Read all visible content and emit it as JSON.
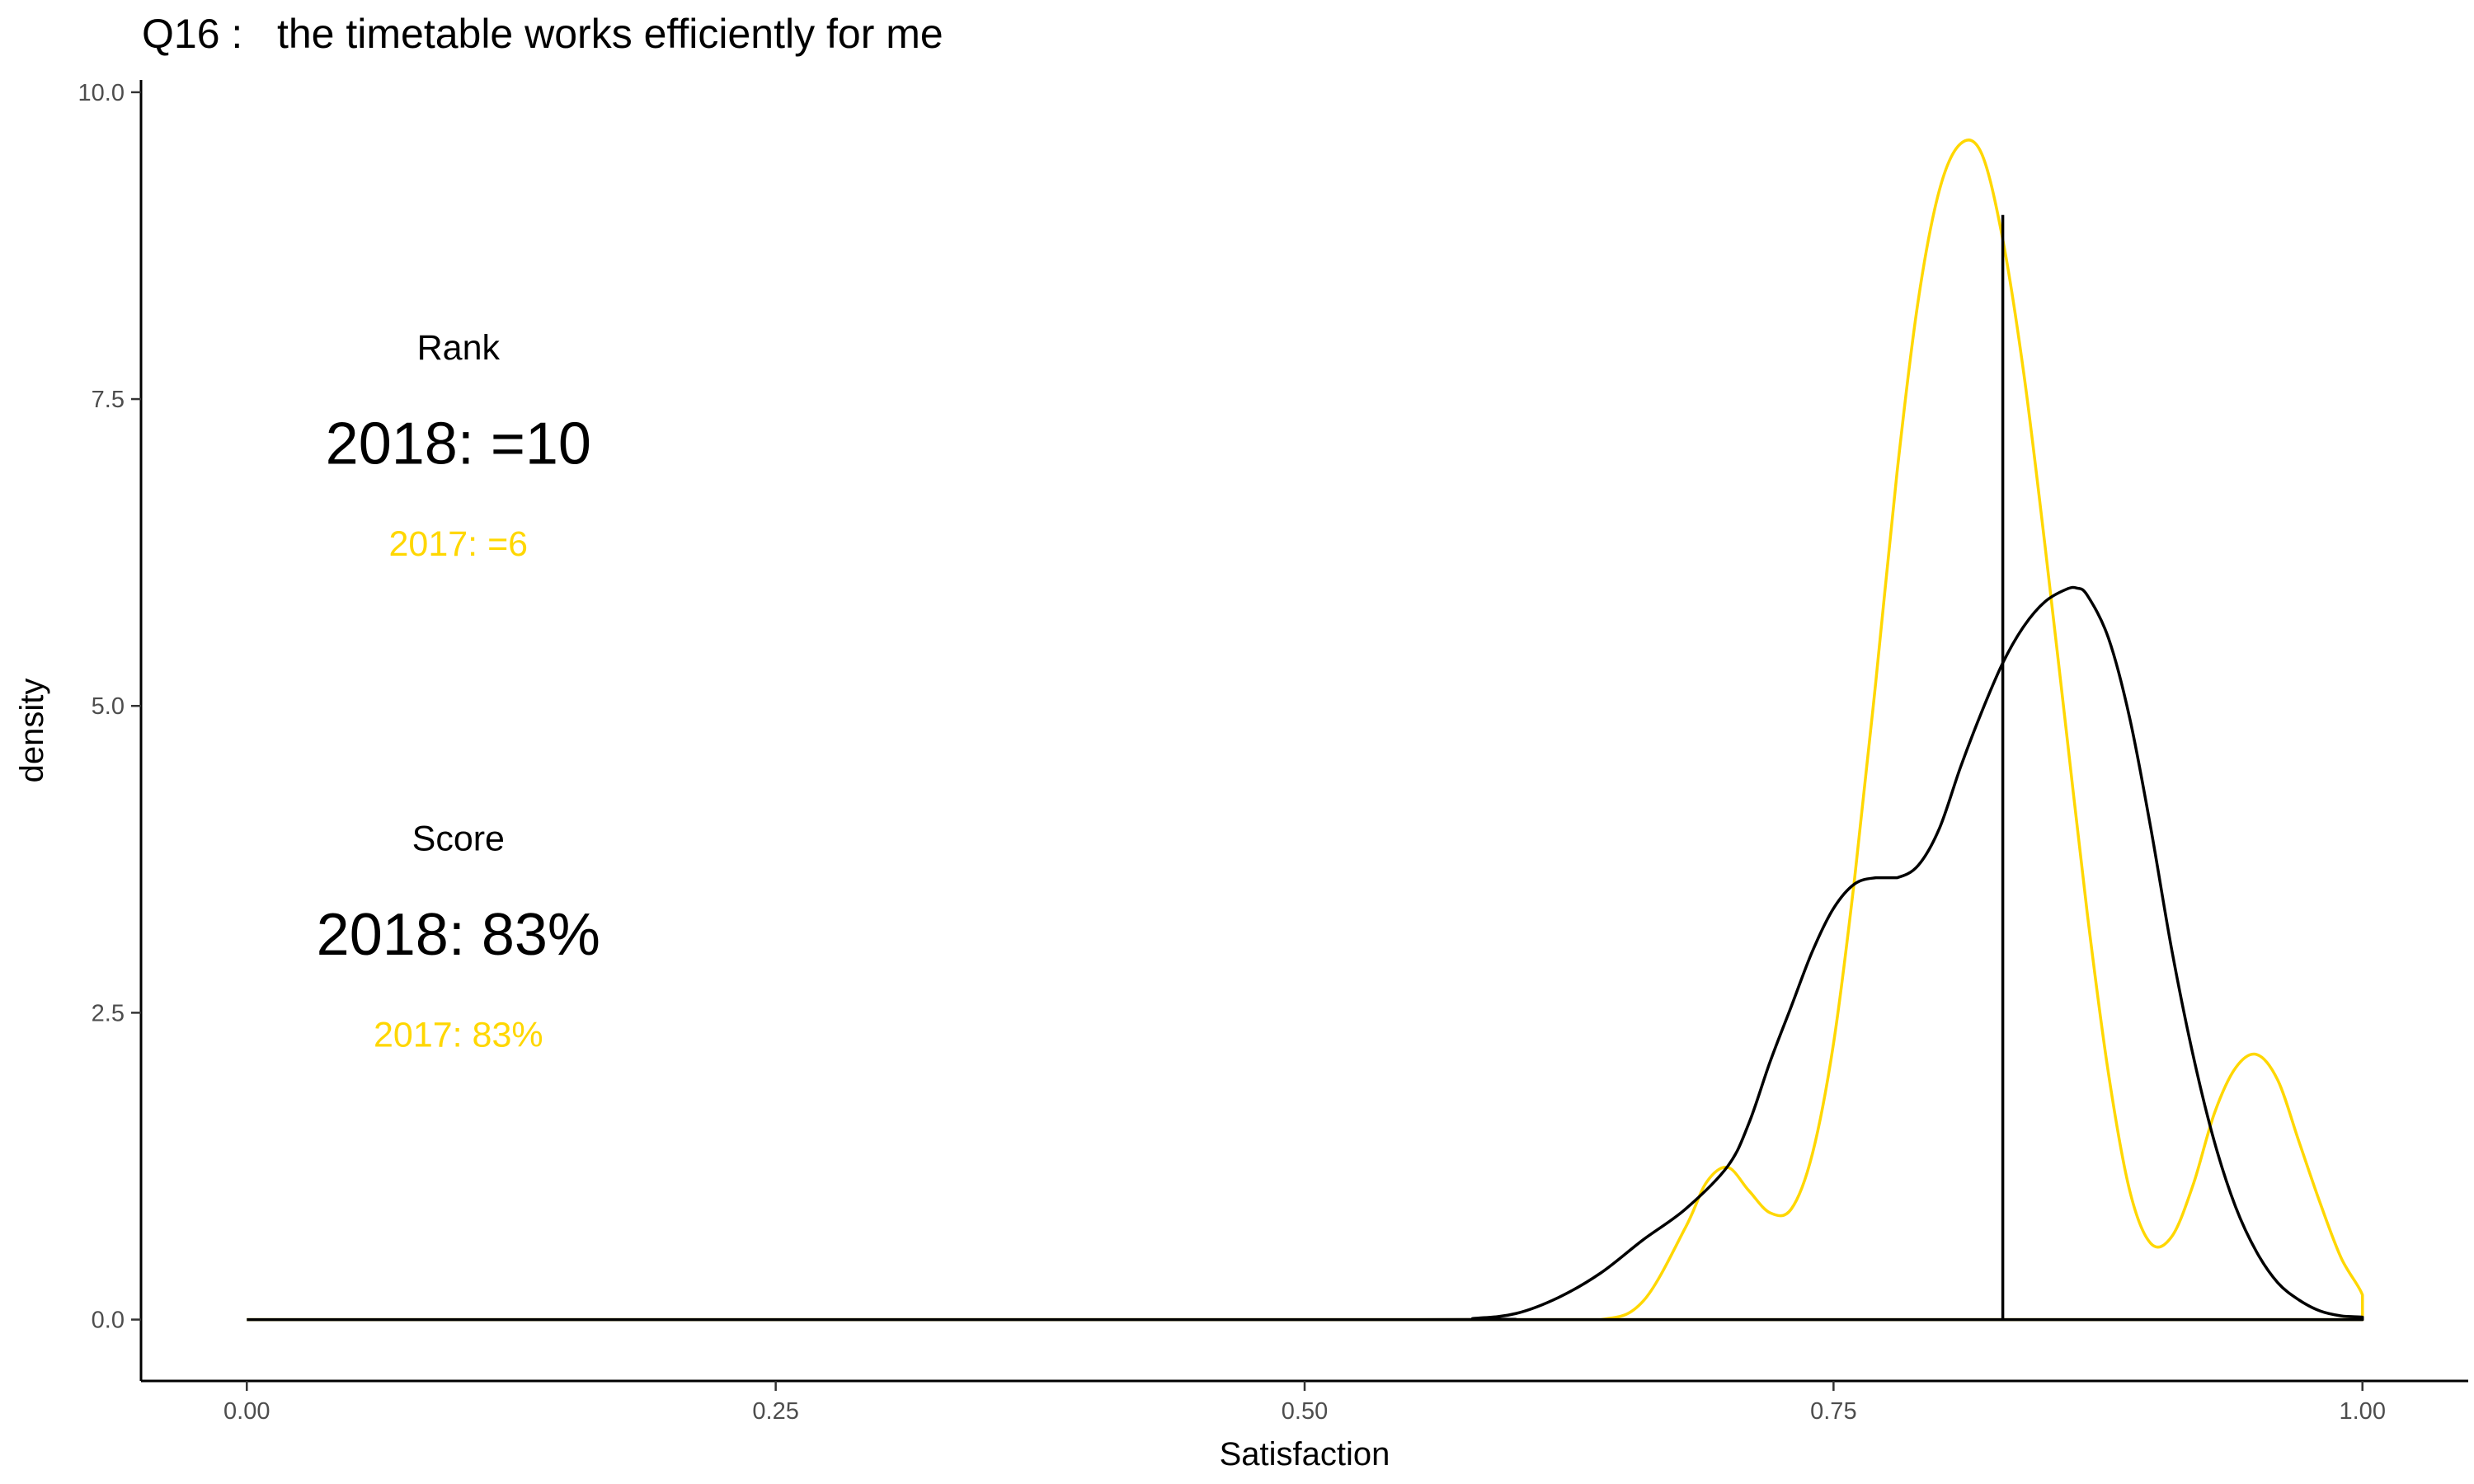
{
  "chart_data": {
    "type": "line",
    "title": "Q16 :   the timetable works efficiently for me",
    "xlabel": "Satisfaction",
    "ylabel": "density",
    "xlim": [
      -0.05,
      1.05
    ],
    "ylim": [
      -0.5,
      10.1
    ],
    "x_ticks": [
      0.0,
      0.25,
      0.5,
      0.75,
      1.0
    ],
    "x_tick_labels": [
      "0.00",
      "0.25",
      "0.50",
      "0.75",
      "1.00"
    ],
    "y_ticks": [
      0.0,
      2.5,
      5.0,
      7.5,
      10.0
    ],
    "y_tick_labels": [
      "0.0",
      "2.5",
      "5.0",
      "7.5",
      "10.0"
    ],
    "grid": false,
    "colors": {
      "2018": "#000000",
      "2017": "#FFD700"
    },
    "series": [
      {
        "color": "#FFD700",
        "x": [
          0.0,
          0.6,
          0.64,
          0.66,
          0.68,
          0.69,
          0.7,
          0.71,
          0.72,
          0.73,
          0.74,
          0.75,
          0.76,
          0.77,
          0.78,
          0.79,
          0.8,
          0.81,
          0.82,
          0.83,
          0.84,
          0.85,
          0.86,
          0.87,
          0.88,
          0.89,
          0.9,
          0.91,
          0.92,
          0.93,
          0.94,
          0.95,
          0.96,
          0.97,
          0.98,
          0.99,
          1.0,
          1.0,
          0.0
        ],
        "y": [
          0.0,
          0.0,
          0.0,
          0.15,
          0.75,
          1.12,
          1.24,
          1.05,
          0.87,
          0.9,
          1.35,
          2.25,
          3.6,
          5.2,
          6.9,
          8.3,
          9.2,
          9.58,
          9.5,
          8.8,
          7.7,
          6.3,
          4.8,
          3.3,
          2.0,
          1.05,
          0.62,
          0.68,
          1.1,
          1.68,
          2.05,
          2.16,
          1.95,
          1.45,
          0.95,
          0.5,
          0.2,
          0.0,
          0.0
        ]
      },
      {
        "color": "#000000",
        "x": [
          0.0,
          0.55,
          0.58,
          0.6,
          0.62,
          0.64,
          0.66,
          0.68,
          0.7,
          0.71,
          0.72,
          0.73,
          0.74,
          0.75,
          0.76,
          0.77,
          0.78,
          0.79,
          0.8,
          0.81,
          0.82,
          0.83,
          0.84,
          0.85,
          0.86,
          0.865,
          0.87,
          0.88,
          0.89,
          0.9,
          0.91,
          0.92,
          0.93,
          0.94,
          0.95,
          0.96,
          0.97,
          0.98,
          0.99,
          1.0,
          1.0,
          0.0
        ],
        "y": [
          0.0,
          0.0,
          0.01,
          0.05,
          0.18,
          0.38,
          0.65,
          0.9,
          1.25,
          1.6,
          2.1,
          2.55,
          3.0,
          3.35,
          3.55,
          3.6,
          3.6,
          3.7,
          4.0,
          4.5,
          4.95,
          5.35,
          5.65,
          5.85,
          5.95,
          5.96,
          5.9,
          5.55,
          4.9,
          4.0,
          3.0,
          2.15,
          1.45,
          0.92,
          0.55,
          0.3,
          0.16,
          0.07,
          0.03,
          0.02,
          0.0,
          0.0
        ]
      }
    ],
    "vline": {
      "x": 0.83,
      "y_top": 9.0,
      "color": "#000000"
    },
    "annotations": {
      "rank_label": "Rank",
      "rank_2018": "2018: =10",
      "rank_2017": "2017: =6",
      "score_label": "Score",
      "score_2018": "2018: 83%",
      "score_2017": "2017: 83%",
      "position_x": 0.1,
      "rank_label_y": 7.9,
      "rank_2018_y": 7.1,
      "rank_2017_y": 6.3,
      "score_label_y": 3.9,
      "score_2018_y": 3.1,
      "score_2017_y": 2.3
    }
  }
}
